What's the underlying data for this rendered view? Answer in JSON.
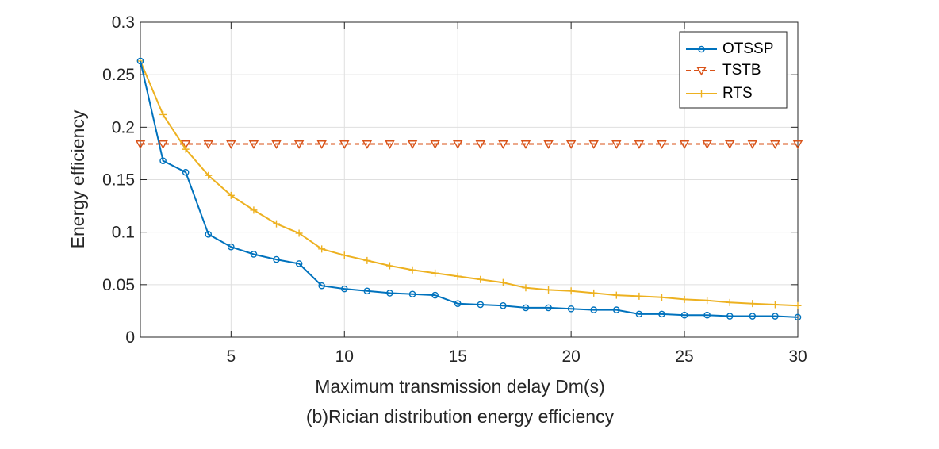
{
  "chart_data": {
    "type": "line",
    "caption": "(b)Rician distribution energy efficiency",
    "xlabel": "Maximum transmission delay Dm(s)",
    "ylabel": "Energy efficiency",
    "xlim": [
      1,
      30
    ],
    "ylim": [
      0,
      0.3
    ],
    "xticks": [
      "5",
      "10",
      "15",
      "20",
      "25",
      "30"
    ],
    "yticks": [
      "0",
      "0.05",
      "0.1",
      "0.15",
      "0.2",
      "0.25",
      "0.3"
    ],
    "grid": true,
    "legend_position": "top-right",
    "x": [
      1,
      2,
      3,
      4,
      5,
      6,
      7,
      8,
      9,
      10,
      11,
      12,
      13,
      14,
      15,
      16,
      17,
      18,
      19,
      20,
      21,
      22,
      23,
      24,
      25,
      26,
      27,
      28,
      29,
      30
    ],
    "series": [
      {
        "name": "OTSSP",
        "color": "#0072BD",
        "marker": "circle",
        "line": "solid",
        "values": [
          0.263,
          0.168,
          0.157,
          0.098,
          0.086,
          0.079,
          0.074,
          0.07,
          0.049,
          0.046,
          0.044,
          0.042,
          0.041,
          0.04,
          0.032,
          0.031,
          0.03,
          0.028,
          0.028,
          0.027,
          0.026,
          0.026,
          0.022,
          0.022,
          0.021,
          0.021,
          0.02,
          0.02,
          0.02,
          0.019
        ]
      },
      {
        "name": "TSTB",
        "color": "#D95319",
        "marker": "triangle-down",
        "line": "dashed",
        "values": [
          0.184,
          0.184,
          0.184,
          0.184,
          0.184,
          0.184,
          0.184,
          0.184,
          0.184,
          0.184,
          0.184,
          0.184,
          0.184,
          0.184,
          0.184,
          0.184,
          0.184,
          0.184,
          0.184,
          0.184,
          0.184,
          0.184,
          0.184,
          0.184,
          0.184,
          0.184,
          0.184,
          0.184,
          0.184,
          0.184
        ]
      },
      {
        "name": "RTS",
        "color": "#EDB120",
        "marker": "plus",
        "line": "solid",
        "values": [
          0.263,
          0.212,
          0.179,
          0.154,
          0.135,
          0.121,
          0.108,
          0.099,
          0.084,
          0.078,
          0.073,
          0.068,
          0.064,
          0.061,
          0.058,
          0.055,
          0.052,
          0.047,
          0.045,
          0.044,
          0.042,
          0.04,
          0.039,
          0.038,
          0.036,
          0.035,
          0.033,
          0.032,
          0.031,
          0.03
        ]
      }
    ]
  }
}
